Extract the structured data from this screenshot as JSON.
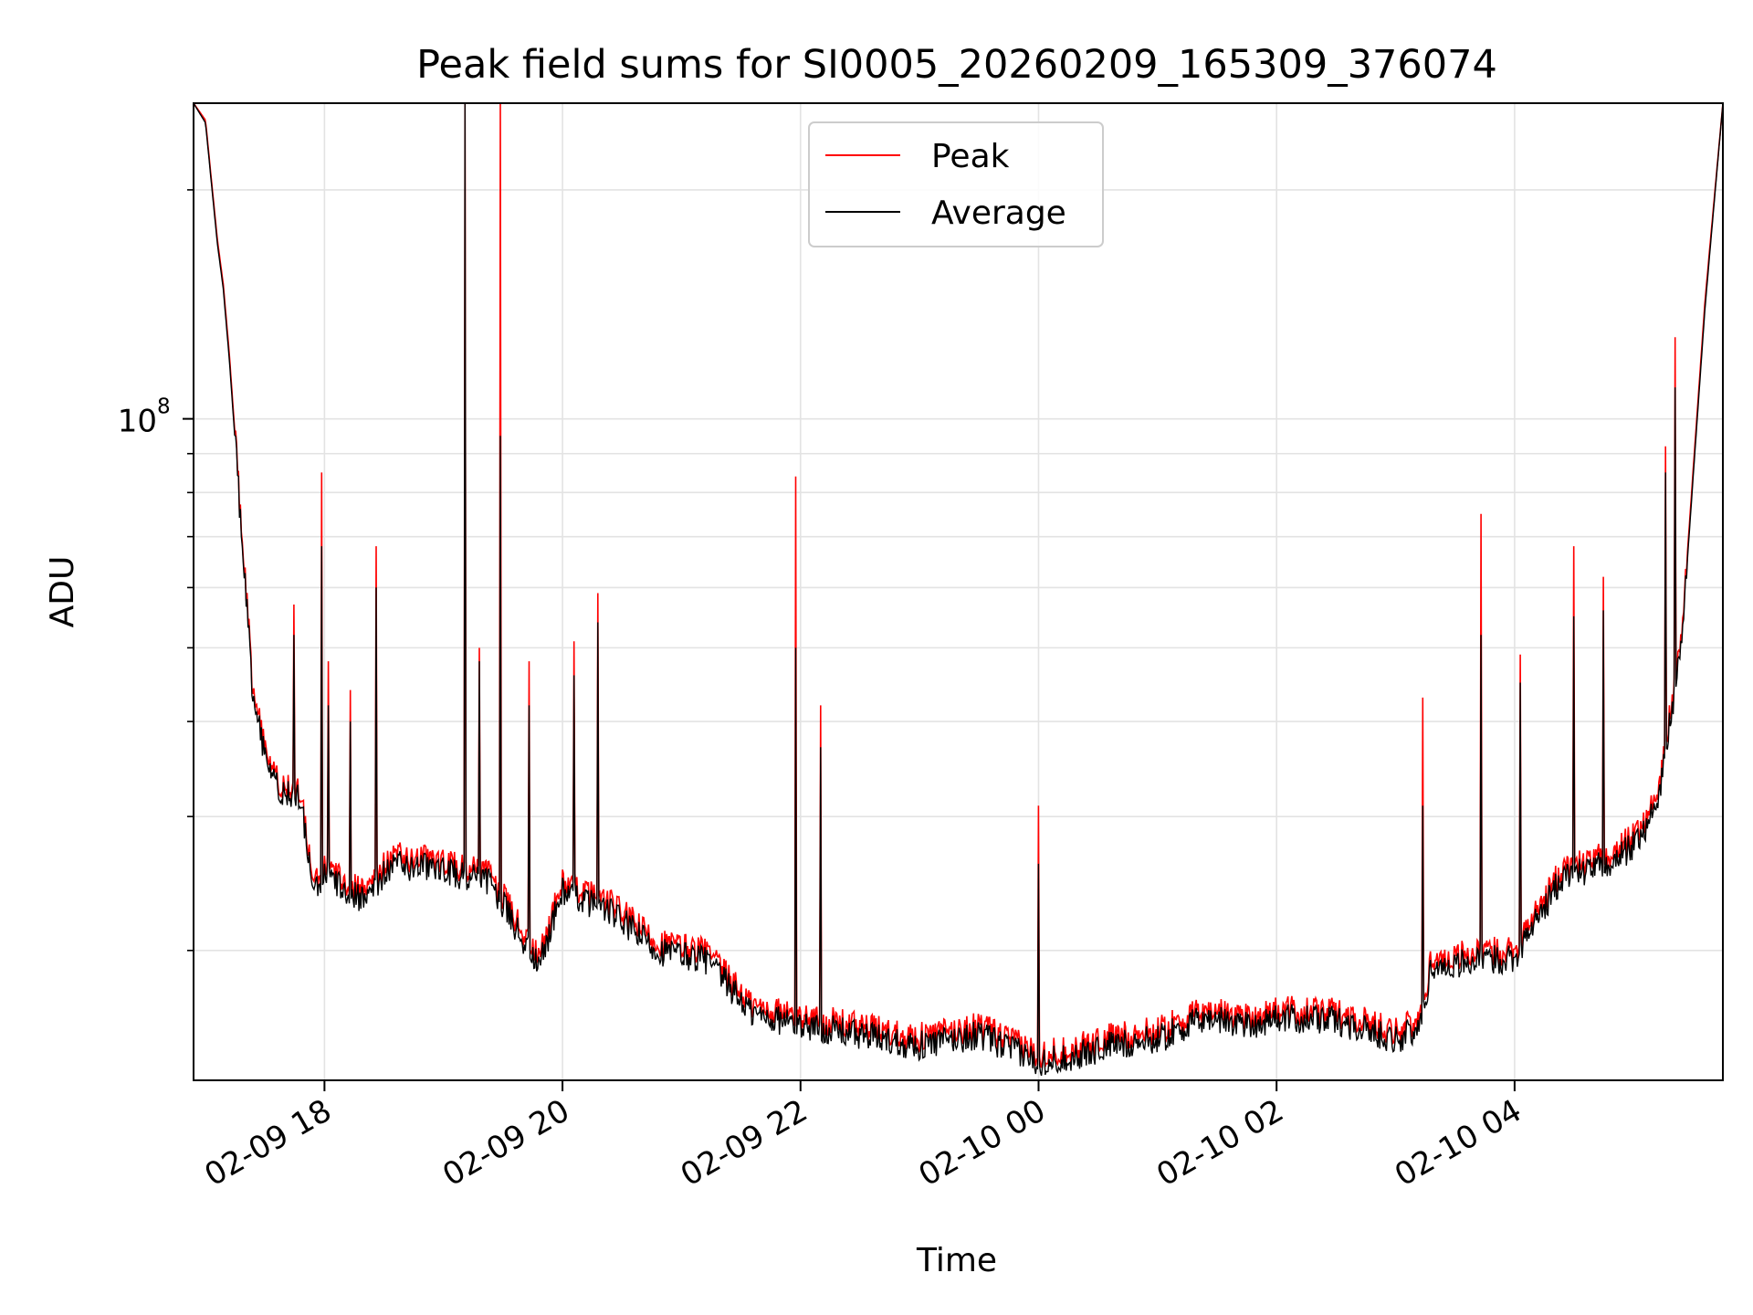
{
  "chart_data": {
    "type": "line",
    "title": "Peak field sums for SI0005_20260209_165309_376074",
    "xlabel": "Time",
    "ylabel": "ADU",
    "yscale": "log",
    "ylim": [
      13500000,
      260000000
    ],
    "xlim_hours": [
      -1.1,
      11.75
    ],
    "x_ticks": [
      {
        "hour": 0,
        "label": "02-09 18"
      },
      {
        "hour": 2,
        "label": "02-09 20"
      },
      {
        "hour": 4,
        "label": "02-09 22"
      },
      {
        "hour": 6,
        "label": "02-10 00"
      },
      {
        "hour": 8,
        "label": "02-10 02"
      },
      {
        "hour": 10,
        "label": "02-10 04"
      }
    ],
    "y_major_tick": {
      "value": 100000000,
      "base": "10",
      "exp": "8"
    },
    "y_minor_ticks": [
      20000000,
      30000000,
      40000000,
      50000000,
      60000000,
      70000000,
      80000000,
      90000000,
      200000000
    ],
    "grid": true,
    "legend": {
      "position": "upper-center",
      "entries": [
        {
          "name": "Peak",
          "color": "#ff0000"
        },
        {
          "name": "Average",
          "color": "#000000"
        }
      ]
    },
    "series": [
      {
        "name": "Average",
        "color": "#000000",
        "x_hours": [
          -1.1,
          -1.0,
          -0.9,
          -0.85,
          -0.8,
          -0.7,
          -0.6,
          -0.5,
          -0.4,
          -0.3,
          -0.2,
          -0.1,
          0.0,
          0.3,
          0.6,
          1.0,
          1.4,
          1.8,
          2.0,
          2.4,
          2.8,
          3.2,
          3.6,
          4.0,
          4.5,
          5.0,
          5.5,
          6.0,
          6.3,
          6.6,
          7.0,
          7.4,
          7.8,
          8.0,
          8.5,
          9.0,
          9.2,
          9.3,
          9.6,
          10.0,
          10.4,
          10.8,
          11.0,
          11.2,
          11.4,
          11.6,
          11.75
        ],
        "values": [
          260000000,
          245000000,
          170000000,
          148000000,
          120000000,
          72000000,
          43000000,
          36000000,
          33000000,
          32000000,
          31500000,
          24000000,
          25000000,
          23500000,
          26000000,
          25500000,
          24500000,
          19000000,
          24000000,
          22500000,
          20000000,
          19500000,
          16500000,
          16000000,
          15500000,
          15000000,
          15500000,
          14300000,
          14500000,
          15000000,
          15300000,
          16300000,
          16000000,
          16300000,
          16200000,
          15300000,
          15700000,
          19000000,
          19300000,
          19600000,
          25000000,
          26000000,
          27500000,
          31000000,
          50000000,
          140000000,
          260000000
        ]
      },
      {
        "name": "Peak",
        "color": "#ff0000",
        "x_hours": [
          -1.1,
          -1.0,
          -0.9,
          -0.85,
          -0.8,
          -0.7,
          -0.6,
          -0.5,
          -0.4,
          -0.3,
          -0.2,
          -0.1,
          0.0,
          0.3,
          0.6,
          1.0,
          1.4,
          1.8,
          2.0,
          2.4,
          2.8,
          3.2,
          3.6,
          4.0,
          4.5,
          5.0,
          5.5,
          6.0,
          6.3,
          6.6,
          7.0,
          7.4,
          7.8,
          8.0,
          8.5,
          9.0,
          9.2,
          9.3,
          9.6,
          10.0,
          10.4,
          10.8,
          11.0,
          11.2,
          11.4,
          11.6,
          11.75
        ],
        "values": [
          260000000,
          247000000,
          172000000,
          150000000,
          122000000,
          73000000,
          44000000,
          36800000,
          33700000,
          32600000,
          32100000,
          24600000,
          25600000,
          24100000,
          26700000,
          26100000,
          25100000,
          19500000,
          24600000,
          23100000,
          20500000,
          20000000,
          16900000,
          16400000,
          15900000,
          15400000,
          15900000,
          14650000,
          14850000,
          15400000,
          15700000,
          16700000,
          16400000,
          16700000,
          16600000,
          15700000,
          16100000,
          19500000,
          19800000,
          20100000,
          25600000,
          26700000,
          28200000,
          31800000,
          51000000,
          143000000,
          260000000
        ]
      }
    ],
    "spikes": [
      {
        "hour": -0.26,
        "peak": 57000000,
        "average": 52000000
      },
      {
        "hour": -0.02,
        "peak": 85000000,
        "average": 68000000
      },
      {
        "hour": 0.03,
        "peak": 48000000,
        "average": 42000000
      },
      {
        "hour": 0.22,
        "peak": 44000000,
        "average": 40000000
      },
      {
        "hour": 0.43,
        "peak": 68000000,
        "average": 60000000
      },
      {
        "hour": 1.18,
        "peak": 260000000,
        "average": 260000000
      },
      {
        "hour": 1.3,
        "peak": 50000000,
        "average": 48000000
      },
      {
        "hour": 1.48,
        "peak": 260000000,
        "average": 95000000
      },
      {
        "hour": 1.72,
        "peak": 48000000,
        "average": 42000000
      },
      {
        "hour": 2.1,
        "peak": 51000000,
        "average": 46000000
      },
      {
        "hour": 2.3,
        "peak": 59000000,
        "average": 54000000
      },
      {
        "hour": 3.96,
        "peak": 84000000,
        "average": 50000000
      },
      {
        "hour": 4.17,
        "peak": 42000000,
        "average": 37000000
      },
      {
        "hour": 6.0,
        "peak": 31000000,
        "average": 26000000
      },
      {
        "hour": 9.23,
        "peak": 43000000,
        "average": 31000000
      },
      {
        "hour": 9.72,
        "peak": 75000000,
        "average": 52000000
      },
      {
        "hour": 10.05,
        "peak": 49000000,
        "average": 45000000
      },
      {
        "hour": 10.5,
        "peak": 68000000,
        "average": 55000000
      },
      {
        "hour": 10.75,
        "peak": 62000000,
        "average": 56000000
      },
      {
        "hour": 11.27,
        "peak": 92000000,
        "average": 85000000
      },
      {
        "hour": 11.35,
        "peak": 128000000,
        "average": 110000000
      }
    ]
  }
}
